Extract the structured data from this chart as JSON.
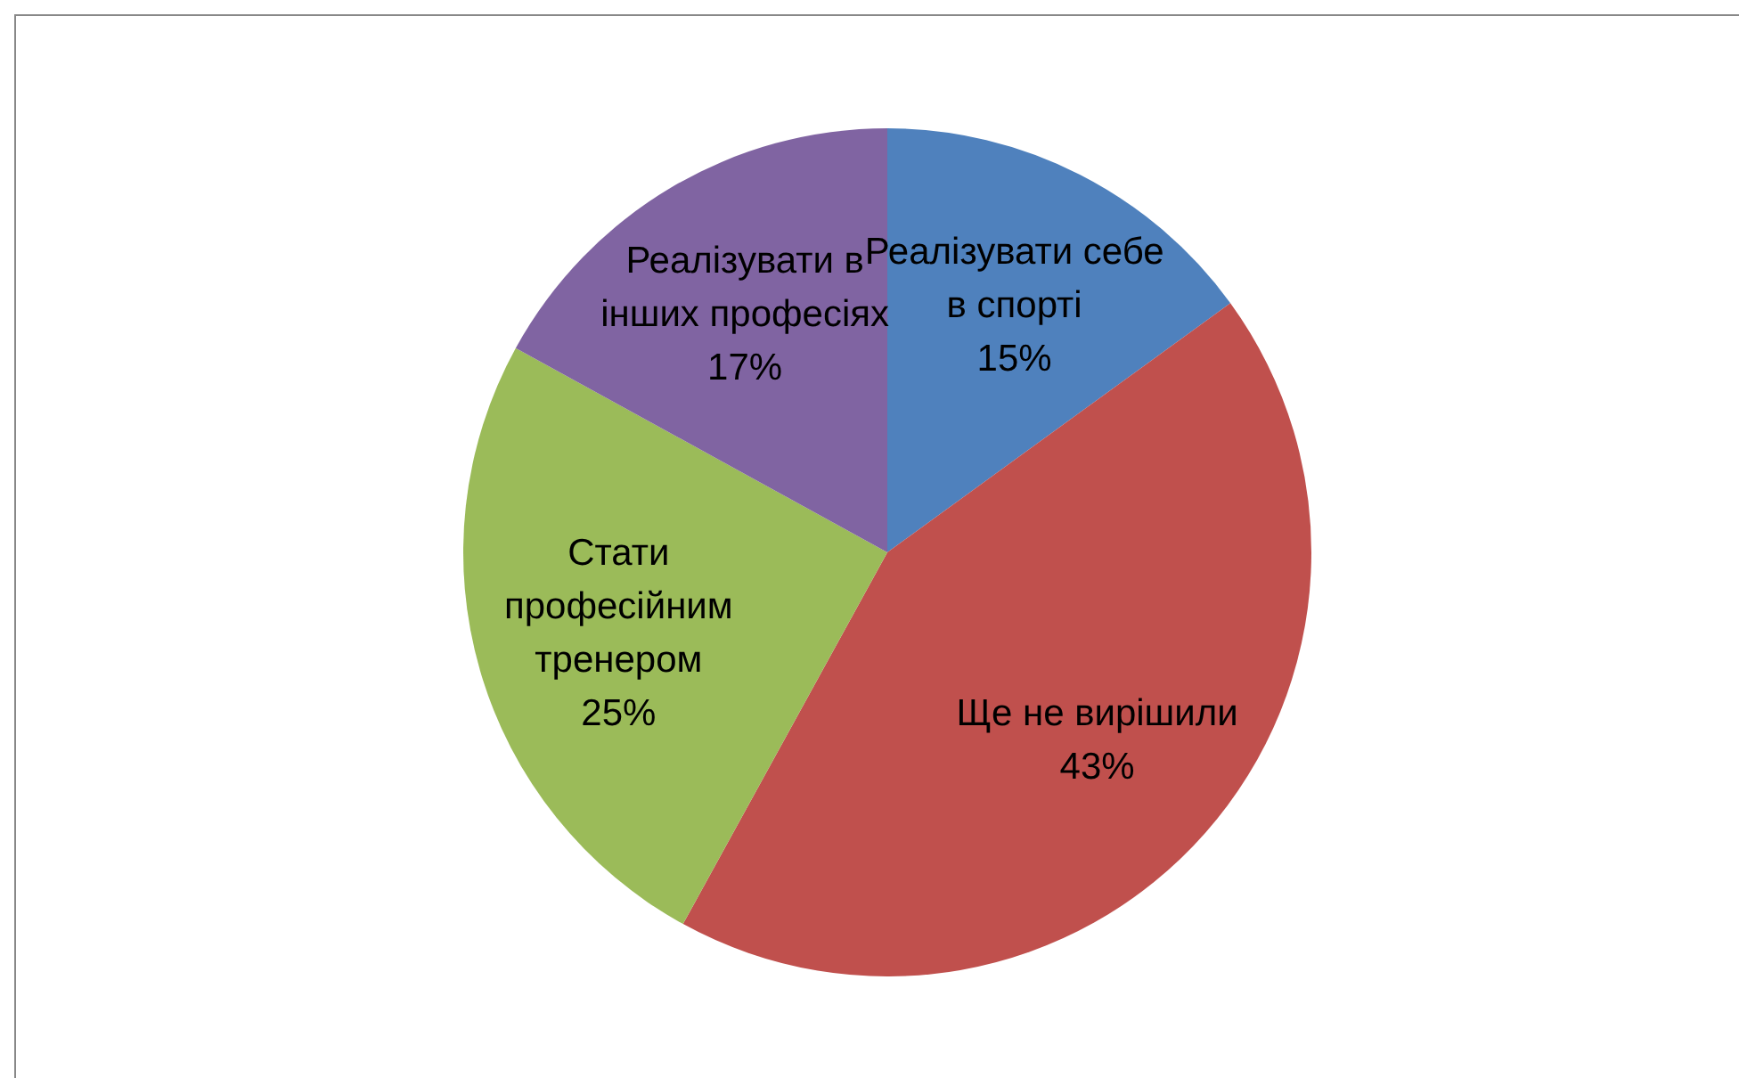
{
  "chart_data": {
    "type": "pie",
    "categories": [
      "Реалізувати себе в спорті",
      "Ще не вирішили",
      "Стати професійним тренером",
      "Реалізувати в інших професіях"
    ],
    "values": [
      15,
      43,
      25,
      17
    ],
    "value_labels": [
      "15%",
      "43%",
      "25%",
      "17%"
    ],
    "colors": [
      "#4f81bd",
      "#c0504d",
      "#9bbb59",
      "#8064a2"
    ]
  }
}
